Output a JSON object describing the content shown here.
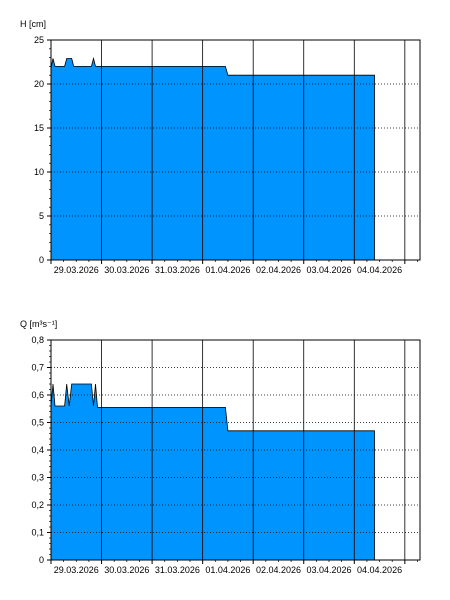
{
  "chart_data": [
    {
      "type": "area",
      "ylabel": "H [cm]",
      "ylim": [
        0,
        25
      ],
      "yticks": [
        0,
        5,
        10,
        15,
        20,
        25
      ],
      "ytick_labels": [
        "0",
        "5",
        "10",
        "15",
        "20",
        "25"
      ],
      "x_categories": [
        "29.03.2026",
        "30.03.2026",
        "31.03.2026",
        "01.04.2026",
        "02.04.2026",
        "03.04.2026",
        "04.04.2026"
      ],
      "xlim_days": [
        0,
        7.3
      ],
      "grid": "on",
      "fill_color": "#0094ff",
      "series": [
        {
          "x_days": [
            0,
            0.04,
            0.08,
            0.12,
            0.27,
            0.31,
            0.36,
            0.41,
            0.45,
            0.8,
            0.84,
            0.88,
            0.92,
            1.0,
            3.45,
            3.5,
            6.4
          ],
          "values": [
            21.8,
            22.9,
            22.0,
            22.0,
            22.0,
            22.9,
            22.9,
            22.9,
            22.0,
            22.0,
            22.9,
            22.0,
            22.0,
            22.0,
            22.0,
            21.0,
            21.0
          ]
        }
      ]
    },
    {
      "type": "area",
      "ylabel": "Q [m³s⁻¹]",
      "ylim": [
        0,
        0.8
      ],
      "yticks": [
        0,
        0.1,
        0.2,
        0.3,
        0.4,
        0.5,
        0.6,
        0.7,
        0.8
      ],
      "ytick_labels": [
        "0",
        "0,1",
        "0,2",
        "0,3",
        "0,4",
        "0,5",
        "0,6",
        "0,7",
        "0,8"
      ],
      "x_categories": [
        "29.03.2026",
        "30.03.2026",
        "31.03.2026",
        "01.04.2026",
        "02.04.2026",
        "03.04.2026",
        "04.04.2026"
      ],
      "xlim_days": [
        0,
        7.3
      ],
      "grid": "on",
      "fill_color": "#0094ff",
      "series": [
        {
          "x_days": [
            0,
            0.04,
            0.08,
            0.12,
            0.27,
            0.31,
            0.36,
            0.41,
            0.45,
            0.62,
            0.66,
            0.8,
            0.84,
            0.88,
            0.92,
            1.0,
            3.45,
            3.5,
            6.4
          ],
          "values": [
            0.56,
            0.64,
            0.56,
            0.56,
            0.56,
            0.64,
            0.56,
            0.64,
            0.64,
            0.64,
            0.64,
            0.64,
            0.56,
            0.64,
            0.555,
            0.555,
            0.555,
            0.47,
            0.47
          ]
        }
      ]
    }
  ]
}
